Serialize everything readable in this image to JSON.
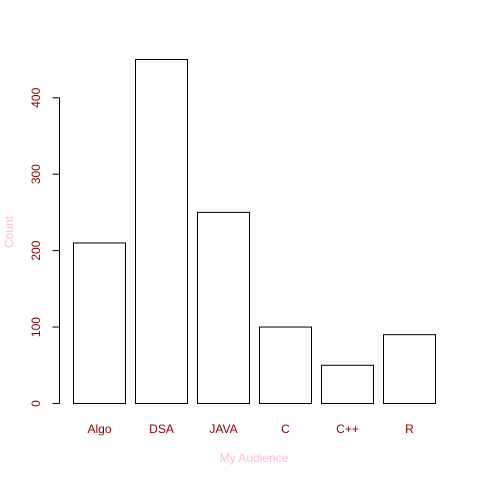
{
  "chart_data": {
    "type": "bar",
    "title": "",
    "xlabel": "My Audience",
    "ylabel": "Count",
    "categories": [
      "Algo",
      "DSA",
      "JAVA",
      "C",
      "C++",
      "R"
    ],
    "values": [
      210,
      450,
      250,
      100,
      50,
      90
    ],
    "yticks": [
      0,
      100,
      200,
      300,
      400
    ],
    "ylim": [
      0,
      450
    ],
    "grid": false,
    "colors": {
      "bar_fill": "#ffffff",
      "bar_stroke": "#000000",
      "tick_label": "#8b0000",
      "axis_title": "#ffc0cb"
    }
  }
}
